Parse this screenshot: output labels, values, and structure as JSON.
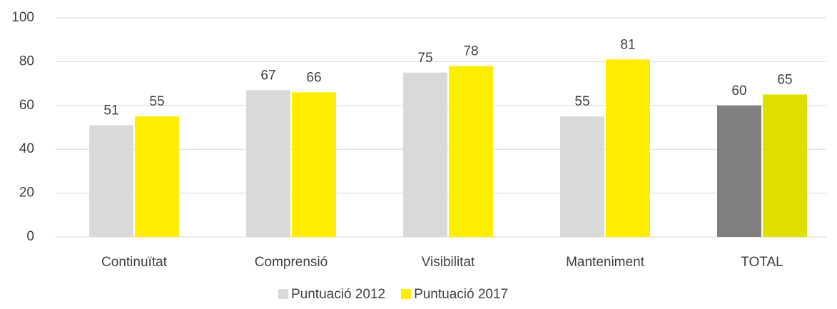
{
  "chart_data": {
    "type": "bar",
    "categories": [
      "Continuïtat",
      "Comprensió",
      "Visibilitat",
      "Manteniment",
      "TOTAL"
    ],
    "series": [
      {
        "name": "Puntuació 2012",
        "color": "#d9d9d9",
        "colors": [
          "#d9d9d9",
          "#d9d9d9",
          "#d9d9d9",
          "#d9d9d9",
          "#7f7f7f"
        ],
        "values": [
          51,
          67,
          75,
          55,
          60
        ]
      },
      {
        "name": "Puntuació 2017",
        "color": "#ffed00",
        "colors": [
          "#ffed00",
          "#ffed00",
          "#ffed00",
          "#ffed00",
          "#dede00"
        ],
        "values": [
          55,
          66,
          78,
          81,
          65
        ]
      }
    ],
    "ylim": [
      0,
      100
    ],
    "yticks": [
      0,
      20,
      40,
      60,
      80,
      100
    ],
    "grid": true,
    "legend": "bottom"
  }
}
